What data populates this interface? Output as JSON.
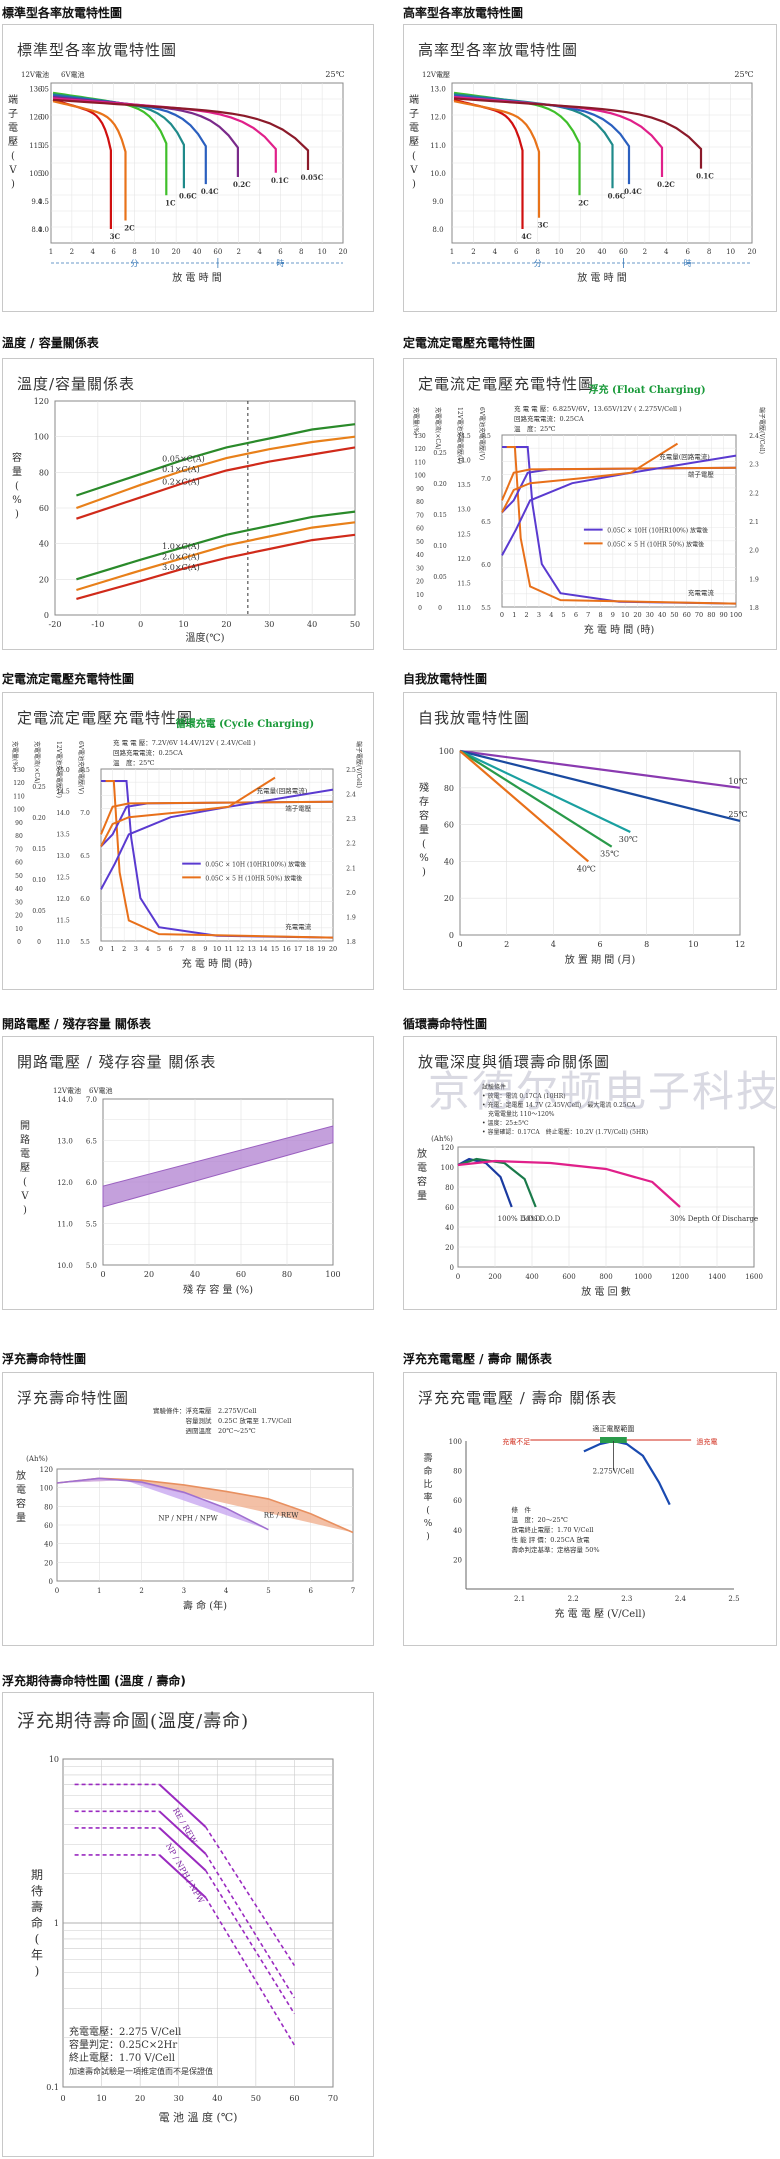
{
  "sections": [
    {
      "title": "標準型各率放電特性圖"
    },
    {
      "title": "高率型各率放電特性圖"
    },
    {
      "title": "溫度 / 容量關係表"
    },
    {
      "title": "定電流定電壓充電特性圖"
    },
    {
      "title": "定電流定電壓充電特性圖"
    },
    {
      "title": "自我放電特性圖"
    },
    {
      "title": "開路電壓 / 殘存容量 關係表"
    },
    {
      "title": "循環壽命特性圖"
    },
    {
      "title": "浮充壽命特性圖"
    },
    {
      "title": "浮充充電電壓 / 壽命 關係表"
    },
    {
      "title": "浮充期待壽命特性圖 (溫度 / 壽命)"
    }
  ],
  "watermark": "京德尔顿电子科技有限公司",
  "chart_data": [
    {
      "type": "line",
      "title": "標準型各率放電特性圖",
      "ylabel": "端子電壓(V)",
      "xlabel": "放 電 時 間",
      "y_units": [
        "12V電池",
        "6V電池"
      ],
      "temp_label": "25℃",
      "x_unit_labels": [
        "分",
        "時"
      ],
      "y_ticks_12v": [
        "13.0",
        "12.0",
        "11.0",
        "10.0",
        "9.0",
        "8.0"
      ],
      "y_ticks_6v": [
        "6.5",
        "6.0",
        "5.5",
        "5.0",
        "4.5",
        "4.0"
      ],
      "x_ticks": [
        "1",
        "2",
        "4",
        "6",
        "8",
        "10",
        "20",
        "40",
        "60",
        "2",
        "4",
        "6",
        "8",
        "10",
        "20"
      ],
      "ylim": [
        7.5,
        13.2
      ],
      "series": [
        {
          "name": "3C",
          "color": "#d01010",
          "end_x": 0.205,
          "end_v": 8.0
        },
        {
          "name": "2C",
          "color": "#e8731a",
          "end_x": 0.255,
          "end_v": 8.3
        },
        {
          "name": "1C",
          "color": "#3fbf2a",
          "end_x": 0.395,
          "end_v": 9.2
        },
        {
          "name": "0.6C",
          "color": "#1f8a8a",
          "end_x": 0.455,
          "end_v": 9.45
        },
        {
          "name": "0.4C",
          "color": "#2a5fbf",
          "end_x": 0.53,
          "end_v": 9.6
        },
        {
          "name": "0.2C",
          "color": "#7a2a8a",
          "end_x": 0.64,
          "end_v": 9.85
        },
        {
          "name": "0.1C",
          "color": "#e0208a",
          "end_x": 0.77,
          "end_v": 10.0
        },
        {
          "name": "0.05C",
          "color": "#8b1a2a",
          "end_x": 0.88,
          "end_v": 10.1
        }
      ]
    },
    {
      "type": "line",
      "title": "高率型各率放電特性圖",
      "ylabel": "端子電壓(V)",
      "xlabel": "放 電 時 間",
      "y_units": [
        "12V電壓"
      ],
      "temp_label": "25℃",
      "x_unit_labels": [
        "分",
        "時"
      ],
      "y_ticks_12v": [
        "13.0",
        "12.0",
        "11.0",
        "10.0",
        "9.0",
        "8.0"
      ],
      "x_ticks": [
        "1",
        "2",
        "4",
        "6",
        "8",
        "10",
        "20",
        "40",
        "60",
        "2",
        "4",
        "6",
        "8",
        "10",
        "20"
      ],
      "ylim": [
        7.5,
        13.2
      ],
      "series": [
        {
          "name": "4C",
          "color": "#d01010",
          "end_x": 0.235,
          "end_v": 8.0
        },
        {
          "name": "3C",
          "color": "#e8731a",
          "end_x": 0.29,
          "end_v": 8.4
        },
        {
          "name": "2C",
          "color": "#3fbf2a",
          "end_x": 0.425,
          "end_v": 9.2
        },
        {
          "name": "0.6C",
          "color": "#1f8a8a",
          "end_x": 0.535,
          "end_v": 9.45
        },
        {
          "name": "0.4C",
          "color": "#2a5fbf",
          "end_x": 0.59,
          "end_v": 9.6
        },
        {
          "name": "0.2C",
          "color": "#e0208a",
          "end_x": 0.7,
          "end_v": 9.85
        },
        {
          "name": "0.1C",
          "color": "#8b1a2a",
          "end_x": 0.83,
          "end_v": 10.15
        }
      ]
    },
    {
      "type": "line",
      "title": "溫度/容量關係表",
      "ylabel": "容量(%)",
      "xlabel": "溫度(℃)",
      "xlim": [
        -20,
        50
      ],
      "ylim": [
        0,
        120
      ],
      "x_ticks": [
        "-20",
        "-10",
        "0",
        "10",
        "20",
        "30",
        "40",
        "50"
      ],
      "y_ticks": [
        "0",
        "20",
        "40",
        "60",
        "80",
        "100",
        "120"
      ],
      "marker_x": 25,
      "series": [
        {
          "name": "0.05×C(A)",
          "color": "#2a8a2a",
          "x": [
            -15,
            0,
            10,
            20,
            30,
            40,
            50
          ],
          "y": [
            67,
            79,
            87,
            94,
            99,
            104,
            107
          ]
        },
        {
          "name": "0.1×C(A)",
          "color": "#e8801a",
          "x": [
            -15,
            0,
            10,
            20,
            30,
            40,
            50
          ],
          "y": [
            60,
            73,
            81,
            88,
            93,
            97,
            100
          ]
        },
        {
          "name": "0.2×C(A)",
          "color": "#d02a1a",
          "x": [
            -15,
            0,
            10,
            20,
            30,
            40,
            50
          ],
          "y": [
            54,
            66,
            74,
            81,
            86,
            90,
            94
          ]
        },
        {
          "name": "1.0×C(A)",
          "color": "#2a8a2a",
          "x": [
            -15,
            0,
            10,
            20,
            30,
            40,
            50
          ],
          "y": [
            20,
            31,
            38,
            45,
            50,
            55,
            58
          ]
        },
        {
          "name": "2.0×C(A)",
          "color": "#e8801a",
          "x": [
            -15,
            0,
            10,
            20,
            30,
            40,
            50
          ],
          "y": [
            14,
            25,
            32,
            39,
            44,
            49,
            52
          ]
        },
        {
          "name": "3.0×C(A)",
          "color": "#d02a1a",
          "x": [
            -15,
            0,
            10,
            20,
            30,
            40,
            50
          ],
          "y": [
            9,
            19,
            26,
            32,
            37,
            42,
            45
          ]
        }
      ]
    },
    {
      "type": "line",
      "title": "定電流定電壓充電特性圖",
      "subtitle": "浮充 (Float Charging)",
      "xlabel": "充 電 時 間 (時)",
      "left_labels": [
        "充電量(%)",
        "充電電流(×CA)",
        "12V電池充電電壓(V)",
        "6V電池充電電壓(V)"
      ],
      "right_label": "端子電壓(V/Cell)",
      "conditions": [
        "充 電 電 壓：6.825V/6V，13.65V/12V ( 2.275V/Cell )",
        "回路充電電流：0.25CA",
        "溫　度：25℃"
      ],
      "legend": [
        "0.05C × 10H (10HR100%) 放電後",
        "0.05C × 5 H (10HR 50%) 放電後"
      ],
      "annotations": [
        "充電量(回路電流)",
        "端子電壓",
        "充電電流"
      ],
      "x_ticks": [
        "0",
        "1",
        "2",
        "3",
        "4",
        "5",
        "6",
        "7",
        "8",
        "9",
        "10",
        "20",
        "30",
        "40",
        "50",
        "60",
        "70",
        "80",
        "90",
        "100"
      ],
      "axis_charge": [
        "0",
        "10",
        "20",
        "30",
        "40",
        "50",
        "60",
        "70",
        "80",
        "90",
        "100",
        "110",
        "120",
        "130"
      ],
      "axis_current": [
        "0",
        "0.05",
        "0.10",
        "0.15",
        "0.20",
        "0.25"
      ],
      "axis_12v": [
        "11.0",
        "11.5",
        "12.0",
        "12.5",
        "13.0",
        "13.5",
        "14.0",
        "14.5"
      ],
      "axis_6v": [
        "5.5",
        "6.0",
        "6.5",
        "7.0",
        "7.5"
      ],
      "axis_cell": [
        "1.8",
        "1.9",
        "2.0",
        "2.1",
        "2.2",
        "2.3",
        "2.4"
      ]
    },
    {
      "type": "line",
      "title": "定電流定電壓充電特性圖",
      "subtitle": "循環充電 (Cycle Charging)",
      "xlabel": "充 電 時 間 (時)",
      "left_labels": [
        "充電量(%)",
        "充電電流(×CA)",
        "12V電池充電電壓(V)",
        "6V電池充電電壓(V)"
      ],
      "right_label": "端子電壓(V/Cell)",
      "conditions": [
        "充 電 電 壓：7.2V/6V 14.4V/12V ( 2.4V/Cell )",
        "回路充電電流：0.25CA",
        "溫　度：25℃"
      ],
      "legend": [
        "0.05C × 10H (10HR100%) 放電後",
        "0.05C × 5 H (10HR 50%) 放電後"
      ],
      "annotations": [
        "充電量(回路電流)",
        "端子電壓",
        "充電電流"
      ],
      "x_ticks": [
        "0",
        "1",
        "2",
        "3",
        "4",
        "5",
        "6",
        "7",
        "8",
        "9",
        "10",
        "11",
        "12",
        "13",
        "14",
        "15",
        "16",
        "17",
        "18",
        "19",
        "20"
      ],
      "axis_charge": [
        "0",
        "10",
        "20",
        "30",
        "40",
        "50",
        "60",
        "70",
        "80",
        "90",
        "100",
        "110",
        "120",
        "130"
      ],
      "axis_current": [
        "0",
        "0.05",
        "0.10",
        "0.15",
        "0.20",
        "0.25"
      ],
      "axis_12v": [
        "11.0",
        "11.5",
        "12.0",
        "12.5",
        "13.0",
        "13.5",
        "14.0",
        "14.5",
        "15.0"
      ],
      "axis_6v": [
        "5.5",
        "6.0",
        "6.5",
        "7.0",
        "7.5"
      ],
      "axis_cell": [
        "1.8",
        "1.9",
        "2.0",
        "2.1",
        "2.2",
        "2.3",
        "2.4",
        "2.5"
      ]
    },
    {
      "type": "line",
      "title": "自我放電特性圖",
      "ylabel": "殘存容量(%)",
      "xlabel": "放 置 期 間 (月)",
      "xlim": [
        0,
        12
      ],
      "ylim": [
        0,
        100
      ],
      "x_ticks": [
        "0",
        "2",
        "4",
        "6",
        "8",
        "10",
        "12"
      ],
      "y_ticks": [
        "0",
        "20",
        "40",
        "60",
        "80",
        "100"
      ],
      "series": [
        {
          "name": "10℃",
          "color": "#8a3ab0",
          "x": [
            0,
            12
          ],
          "y": [
            100,
            80
          ]
        },
        {
          "name": "25℃",
          "color": "#1a4aa0",
          "x": [
            0,
            12
          ],
          "y": [
            100,
            62
          ]
        },
        {
          "name": "30℃",
          "color": "#1aa0a0",
          "x": [
            0,
            7.3
          ],
          "y": [
            100,
            56
          ]
        },
        {
          "name": "35℃",
          "color": "#2a9a4a",
          "x": [
            0,
            6.5
          ],
          "y": [
            100,
            48
          ]
        },
        {
          "name": "40℃",
          "color": "#e8701a",
          "x": [
            0,
            5.5
          ],
          "y": [
            100,
            40
          ]
        }
      ]
    },
    {
      "type": "area",
      "title": "開路電壓 / 殘存容量 關係表",
      "ylabel": "開路電壓(V)",
      "xlabel": "殘 存 容 量 (%)",
      "y_units": [
        "12V電池",
        "6V電池"
      ],
      "x_ticks": [
        "0",
        "20",
        "40",
        "60",
        "80",
        "100"
      ],
      "y_ticks_12v": [
        "10.0",
        "11.0",
        "12.0",
        "13.0",
        "14.0"
      ],
      "y_ticks_6v": [
        "5.0",
        "5.5",
        "6.0",
        "6.5",
        "7.0"
      ],
      "xlim": [
        0,
        100
      ],
      "ylim": [
        10,
        14
      ],
      "band": {
        "x": [
          0,
          100
        ],
        "lower": [
          11.4,
          12.95
        ],
        "upper": [
          11.9,
          13.35
        ],
        "color": "#b080d0"
      }
    },
    {
      "type": "line",
      "title": "放電深度與循環壽命關係圖",
      "ylabel": "放電容量",
      "xlabel": "放 電 回 數",
      "conditions": [
        "試驗條件",
        "• 放電：電流 0.17CA (10HR)",
        "• 充電：定電壓 14.7V (2.45V/Cell)　最大電流 0.25CA",
        "　充電電量比 110～120%",
        "• 溫度：25±5℃",
        "• 容量確認：0.17CA　終止電壓：10.2V (1.7V/Cell) (5HR)"
      ],
      "xlim": [
        0,
        1600
      ],
      "ylim": [
        0,
        120
      ],
      "x_ticks": [
        "0",
        "200",
        "400",
        "600",
        "800",
        "1000",
        "1200",
        "1400",
        "1600"
      ],
      "y_ticks": [
        "0",
        "20",
        "40",
        "60",
        "80",
        "100",
        "120"
      ],
      "y_unit": "(Ah%)",
      "series": [
        {
          "name": "100% D.O.D",
          "color": "#1a3aa0",
          "x": [
            0,
            60,
            150,
            230,
            290
          ],
          "y": [
            102,
            108,
            104,
            90,
            60
          ]
        },
        {
          "name": "50% D.O.D",
          "color": "#1a7a4a",
          "x": [
            0,
            100,
            250,
            360,
            420
          ],
          "y": [
            102,
            108,
            104,
            88,
            60
          ]
        },
        {
          "name": "30% Depth Of Discharge",
          "color": "#e0208a",
          "x": [
            0,
            200,
            500,
            800,
            1050,
            1200
          ],
          "y": [
            102,
            106,
            104,
            98,
            85,
            60
          ]
        }
      ]
    },
    {
      "type": "area",
      "title": "浮充壽命特性圖",
      "ylabel": "放電容量",
      "xlabel": "壽 命 (年)",
      "y_unit": "(Ah%)",
      "conditions": [
        "實驗條件：浮充電壓　2.275V/Cell",
        "　　　　　容量測試　0.25C 放電至 1.7V/Cell",
        "　　　　　週圍溫度　20℃～25℃"
      ],
      "xlim": [
        0,
        7
      ],
      "ylim": [
        0,
        120
      ],
      "x_ticks": [
        "0",
        "1",
        "2",
        "3",
        "4",
        "5",
        "6",
        "7"
      ],
      "y_ticks": [
        "0",
        "20",
        "40",
        "60",
        "80",
        "100",
        "120"
      ],
      "series": [
        {
          "name": "NP / NPH / NPW",
          "color": "#a070d0",
          "x": [
            0,
            1,
            2,
            3,
            4,
            5
          ],
          "y": [
            105,
            110,
            106,
            95,
            78,
            55
          ]
        },
        {
          "name": "RE / REW",
          "color": "#e89060",
          "x": [
            0,
            1,
            2,
            3,
            4,
            5,
            6,
            7
          ],
          "y": [
            105,
            110,
            108,
            103,
            96,
            88,
            72,
            52
          ]
        }
      ]
    },
    {
      "type": "line",
      "title": "浮充充電電壓 / 壽命 關係表",
      "ylabel": "壽命比率(%)",
      "xlabel": "充 電 電 壓 (V/Cell)",
      "annotations": [
        "適正電壓範圍",
        "充電不足",
        "過充電",
        "2.275V/Cell"
      ],
      "conditions": [
        "條　件",
        "溫　度：20～25℃",
        "放電終止電壓：1.70 V/Cell",
        "性 能 評 價：0.25CA 放電",
        "壽命判定基準：定格容量 50%"
      ],
      "xlim": [
        2.0,
        2.5
      ],
      "ylim": [
        0,
        100
      ],
      "x_ticks": [
        "2.1",
        "2.2",
        "2.3",
        "2.4",
        "2.5"
      ],
      "y_ticks": [
        "20",
        "40",
        "60",
        "80",
        "100"
      ],
      "series": [
        {
          "name": "壽命比率",
          "color": "#1a4ab0",
          "x": [
            2.22,
            2.25,
            2.275,
            2.3,
            2.33,
            2.36,
            2.38
          ],
          "y": [
            93,
            98,
            100,
            98,
            90,
            72,
            57
          ]
        }
      ]
    },
    {
      "type": "line",
      "title": "浮充期待壽命圖(溫度/壽命)",
      "ylabel": "期待壽命(年)",
      "xlabel": "電 池 溫 度 (℃)",
      "log_y": true,
      "xlim": [
        0,
        70
      ],
      "ylim": [
        0.1,
        10
      ],
      "x_ticks": [
        "0",
        "10",
        "20",
        "30",
        "40",
        "50",
        "60",
        "70"
      ],
      "y_ticks": [
        "0.1",
        "1",
        "10"
      ],
      "conditions": [
        "充電電壓：2.275 V/Cell",
        "容量判定：0.25C×2Hr",
        "終止電壓：1.70 V/Cell",
        "加速壽命試驗是一項推定值而不是保證值"
      ],
      "series": [
        {
          "name": "RE / REW",
          "color": "#9a2ac0",
          "x": [
            3,
            25,
            60
          ],
          "upper": [
            7.0,
            7.0,
            0.55
          ],
          "lower": [
            4.8,
            4.8,
            0.35
          ]
        },
        {
          "name": "NP / NPH / NPW",
          "color": "#9a2ac0",
          "x": [
            3,
            25,
            60
          ],
          "upper": [
            3.8,
            3.8,
            0.28
          ],
          "lower": [
            2.6,
            2.6,
            0.18
          ]
        }
      ]
    }
  ]
}
